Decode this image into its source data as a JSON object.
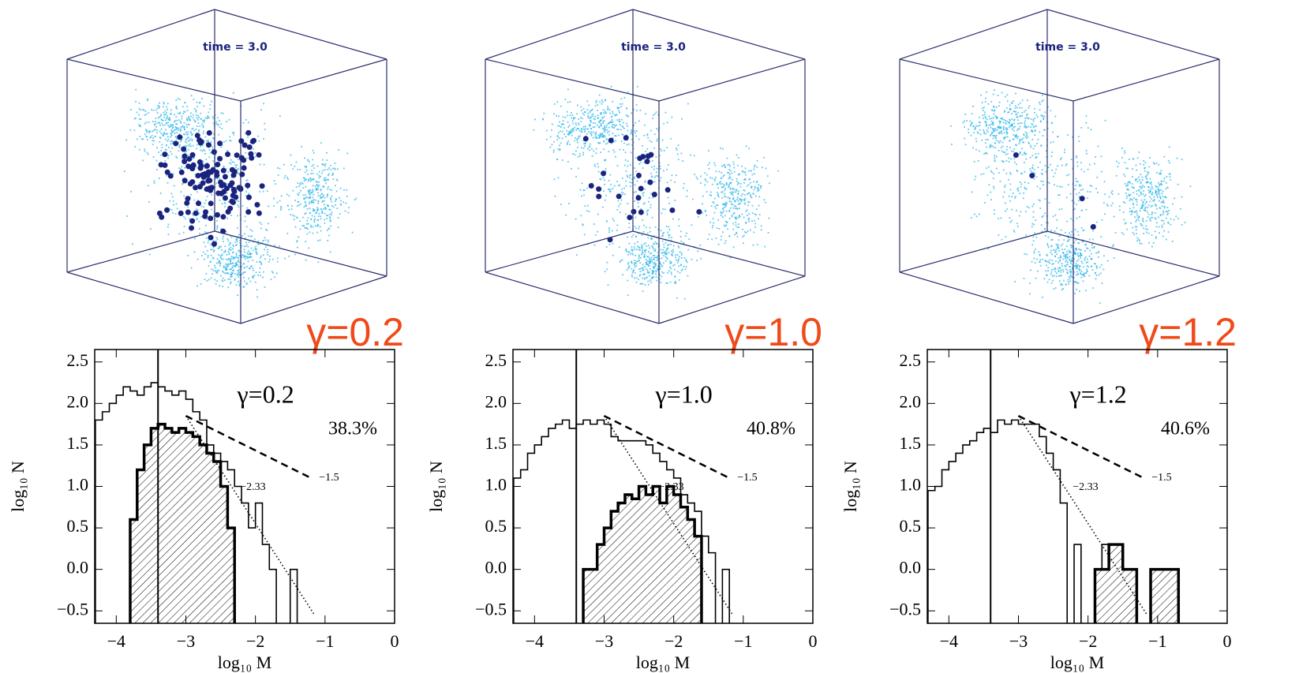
{
  "cubes": [
    {
      "time_label": "time = 3.0",
      "gamma_label": "γ=0.2"
    },
    {
      "time_label": "time = 3.0",
      "gamma_label": "γ=1.0"
    },
    {
      "time_label": "time = 3.0",
      "gamma_label": "γ=1.2"
    }
  ],
  "chart_data": [
    {
      "type": "histogram",
      "annotation": "γ=0.2",
      "fraction_label": "38.3%",
      "x_label": "log₁₀ M",
      "y_label": "log₁₀ N",
      "xlim": [
        -4.31,
        0
      ],
      "ylim": [
        -0.65,
        2.65
      ],
      "xticks": [
        {
          "value": -4,
          "label": "−4"
        },
        {
          "value": -3,
          "label": "−3"
        },
        {
          "value": -2,
          "label": "−2"
        },
        {
          "value": -1,
          "label": "−1"
        },
        0
      ],
      "yticks": [
        {
          "value": -0.5,
          "label": "−0.5"
        },
        {
          "value": 0,
          "label": "0.0"
        },
        0.5,
        {
          "value": 1,
          "label": "1.0"
        },
        1.5,
        {
          "value": 2,
          "label": "2.0"
        },
        2.5
      ],
      "vline": -3.4,
      "lines": [
        {
          "label": "−2.33",
          "style": "dotted",
          "x": [
            -3.0,
            -1.15
          ],
          "y": [
            1.85,
            -0.55
          ]
        },
        {
          "label": "−1.5",
          "style": "dashed",
          "x": [
            -3.0,
            -1.2
          ],
          "y": [
            1.85,
            1.1
          ]
        }
      ],
      "bins": [
        -4.3,
        -4.2,
        -4.1,
        -4.0,
        -3.9,
        -3.8,
        -3.7,
        -3.6,
        -3.5,
        -3.4,
        -3.3,
        -3.2,
        -3.1,
        -3.0,
        -2.9,
        -2.8,
        -2.7,
        -2.6,
        -2.5,
        -2.4,
        -2.3,
        -2.2,
        -2.1,
        -2.0,
        -1.9,
        -1.8,
        -1.7,
        -1.6,
        -1.5,
        -1.4
      ],
      "series": [
        {
          "color": "#000000",
          "hatched": false,
          "values": [
            1.8,
            1.9,
            2.0,
            2.1,
            2.2,
            2.15,
            2.1,
            2.2,
            2.25,
            2.2,
            2.15,
            2.1,
            2.15,
            2.05,
            1.9,
            1.8,
            1.5,
            1.4,
            1.3,
            1.2,
            1.0,
            0.8,
            0.5,
            0.8,
            0.3,
            0.0,
            null,
            null,
            0.0
          ]
        },
        {
          "color": "#000000",
          "hatched": true,
          "values": [
            null,
            null,
            null,
            null,
            null,
            0.6,
            1.2,
            1.5,
            1.7,
            1.75,
            1.7,
            1.65,
            1.7,
            1.65,
            1.6,
            1.5,
            1.4,
            1.3,
            1.0,
            0.5,
            null,
            null,
            null,
            null,
            null,
            null,
            null,
            null,
            null
          ]
        }
      ]
    },
    {
      "type": "histogram",
      "annotation": "γ=1.0",
      "fraction_label": "40.8%",
      "x_label": "log₁₀ M",
      "y_label": "log₁₀ N",
      "xlim": [
        -4.31,
        0
      ],
      "ylim": [
        -0.65,
        2.65
      ],
      "xticks": [
        {
          "value": -4,
          "label": "−4"
        },
        {
          "value": -3,
          "label": "−3"
        },
        {
          "value": -2,
          "label": "−2"
        },
        {
          "value": -1,
          "label": "−1"
        },
        0
      ],
      "yticks": [
        {
          "value": -0.5,
          "label": "−0.5"
        },
        {
          "value": 0,
          "label": "0.0"
        },
        0.5,
        {
          "value": 1,
          "label": "1.0"
        },
        1.5,
        {
          "value": 2,
          "label": "2.0"
        },
        2.5
      ],
      "vline": -3.4,
      "lines": [
        {
          "label": "−2.33",
          "style": "dotted",
          "x": [
            -3.0,
            -1.15
          ],
          "y": [
            1.85,
            -0.55
          ]
        },
        {
          "label": "−1.5",
          "style": "dashed",
          "x": [
            -3.0,
            -1.2
          ],
          "y": [
            1.85,
            1.1
          ]
        }
      ],
      "bins": [
        -4.3,
        -4.2,
        -4.1,
        -4.0,
        -3.9,
        -3.8,
        -3.7,
        -3.6,
        -3.5,
        -3.4,
        -3.3,
        -3.2,
        -3.1,
        -3.0,
        -2.9,
        -2.8,
        -2.7,
        -2.6,
        -2.5,
        -2.4,
        -2.3,
        -2.2,
        -2.1,
        -2.0,
        -1.9,
        -1.8,
        -1.7,
        -1.6,
        -1.5,
        -1.4,
        -1.3,
        -1.2
      ],
      "series": [
        {
          "color": "#000000",
          "hatched": false,
          "values": [
            1.1,
            1.2,
            1.4,
            1.5,
            1.6,
            1.7,
            1.75,
            1.8,
            1.7,
            1.75,
            1.8,
            1.75,
            1.8,
            1.75,
            1.6,
            1.55,
            1.55,
            1.55,
            1.55,
            1.5,
            1.4,
            1.3,
            1.2,
            1.1,
            0.9,
            0.8,
            0.7,
            0.4,
            0.2,
            null,
            0.0
          ]
        },
        {
          "color": "#000000",
          "hatched": true,
          "values": [
            null,
            null,
            null,
            null,
            null,
            null,
            null,
            null,
            null,
            null,
            0.0,
            0.0,
            0.3,
            0.5,
            0.7,
            0.8,
            0.9,
            0.85,
            1.0,
            0.9,
            1.0,
            0.8,
            1.0,
            0.9,
            0.75,
            0.6,
            0.4,
            null,
            null,
            null,
            null
          ]
        }
      ]
    },
    {
      "type": "histogram",
      "annotation": "γ=1.2",
      "fraction_label": "40.6%",
      "x_label": "log₁₀ M",
      "y_label": "log₁₀ N",
      "xlim": [
        -4.31,
        0
      ],
      "ylim": [
        -0.65,
        2.65
      ],
      "xticks": [
        {
          "value": -4,
          "label": "−4"
        },
        {
          "value": -3,
          "label": "−3"
        },
        {
          "value": -2,
          "label": "−2"
        },
        {
          "value": -1,
          "label": "−1"
        },
        0
      ],
      "yticks": [
        {
          "value": -0.5,
          "label": "−0.5"
        },
        {
          "value": 0,
          "label": "0.0"
        },
        0.5,
        {
          "value": 1,
          "label": "1.0"
        },
        1.5,
        {
          "value": 2,
          "label": "2.0"
        },
        2.5
      ],
      "vline": -3.4,
      "lines": [
        {
          "label": "−2.33",
          "style": "dotted",
          "x": [
            -3.0,
            -1.15
          ],
          "y": [
            1.85,
            -0.55
          ]
        },
        {
          "label": "−1.5",
          "style": "dashed",
          "x": [
            -3.0,
            -1.2
          ],
          "y": [
            1.85,
            1.1
          ]
        }
      ],
      "bins": [
        -4.3,
        -4.2,
        -4.1,
        -4.0,
        -3.9,
        -3.8,
        -3.7,
        -3.6,
        -3.5,
        -3.4,
        -3.3,
        -3.2,
        -3.1,
        -3.0,
        -2.9,
        -2.8,
        -2.7,
        -2.6,
        -2.5,
        -2.4,
        -2.3,
        -2.2,
        -2.1,
        -2.0,
        -1.9,
        -1.8,
        -1.7,
        -1.6,
        -1.5,
        -1.4,
        -1.3,
        -1.2,
        -1.1,
        -1.0,
        -0.9,
        -0.8,
        -0.7
      ],
      "series": [
        {
          "color": "#000000",
          "hatched": false,
          "values": [
            0.95,
            1.0,
            1.2,
            1.3,
            1.4,
            1.5,
            1.55,
            1.65,
            1.7,
            1.65,
            1.8,
            1.75,
            1.8,
            1.75,
            1.75,
            1.75,
            1.6,
            1.4,
            1.2,
            0.8,
            null,
            0.3,
            null,
            null,
            0.0,
            0.3,
            0.3,
            0.3,
            0.0,
            0.0,
            null,
            null,
            0.0,
            0.0,
            0.0,
            0.0
          ]
        },
        {
          "color": "#000000",
          "hatched": true,
          "values": [
            null,
            null,
            null,
            null,
            null,
            null,
            null,
            null,
            null,
            null,
            null,
            null,
            null,
            null,
            null,
            null,
            null,
            null,
            null,
            null,
            null,
            null,
            null,
            null,
            0.0,
            0.0,
            0.3,
            0.3,
            0.0,
            0.0,
            null,
            null,
            0.0,
            0.0,
            0.0,
            0.0
          ]
        }
      ]
    }
  ]
}
